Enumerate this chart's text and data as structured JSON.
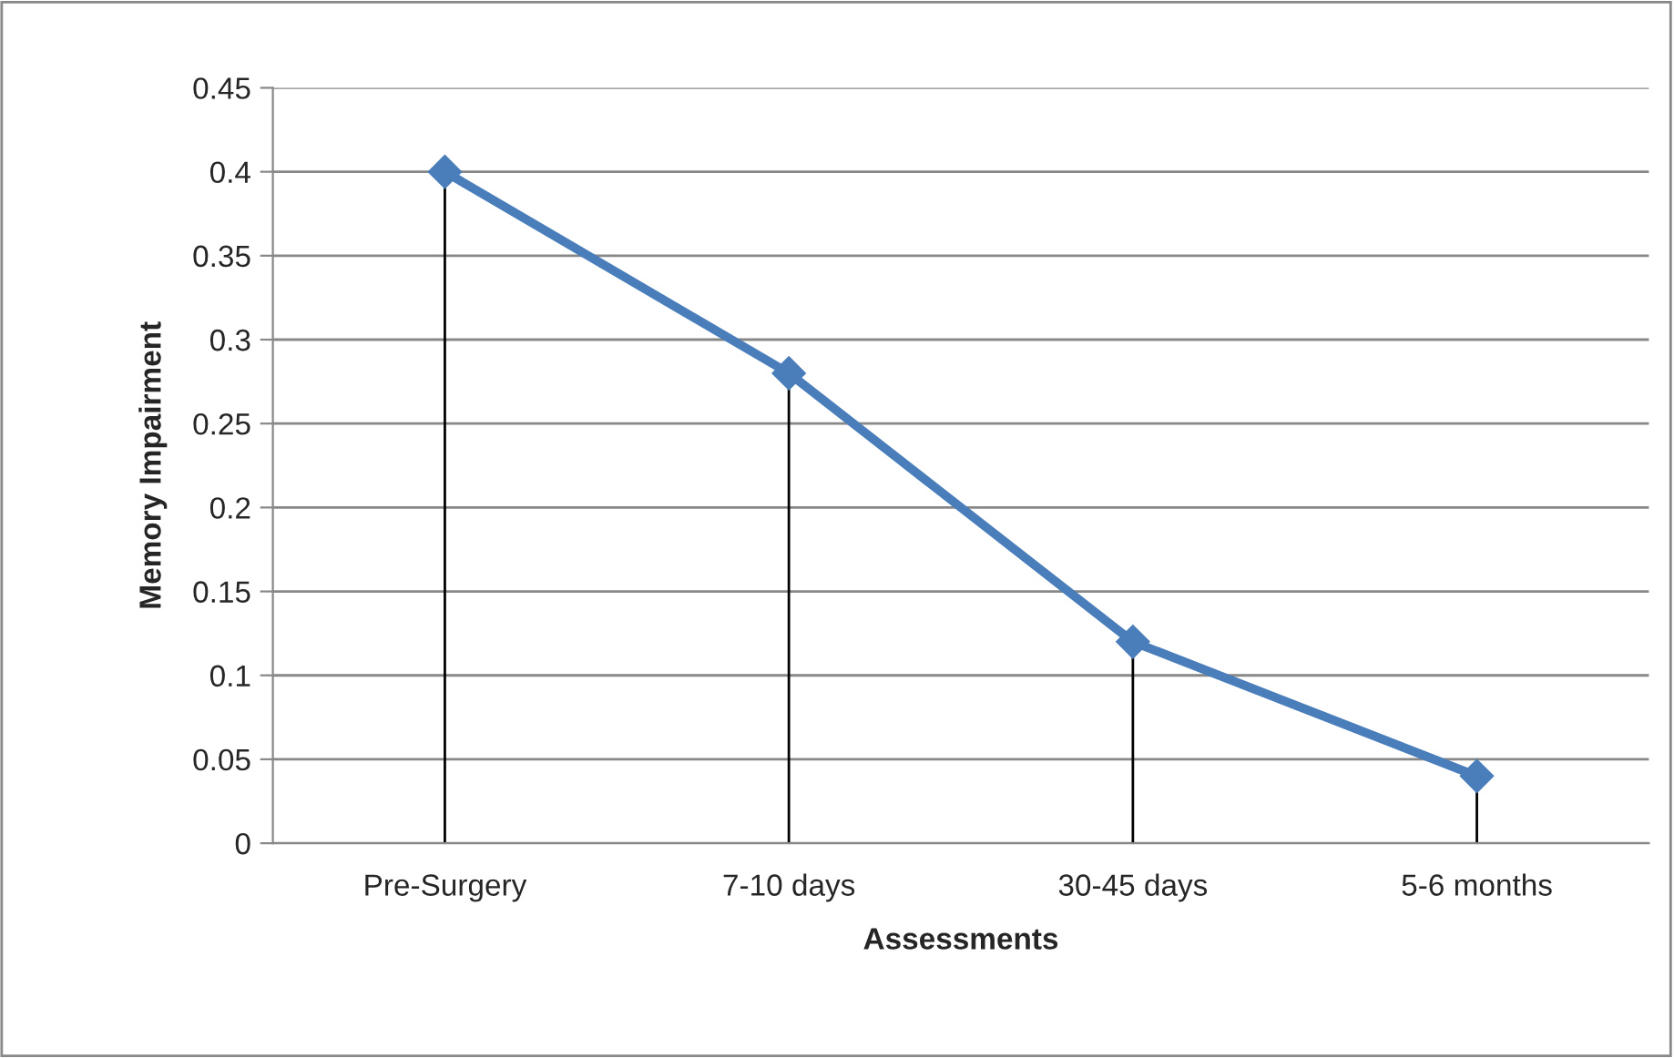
{
  "chart_data": {
    "type": "line",
    "xlabel": "Assessments",
    "ylabel": "Memory Impairment",
    "categories": [
      "Pre-Surgery",
      "7-10 days",
      "30-45 days",
      "5-6 months"
    ],
    "series": [
      {
        "color": "#4a7ebb",
        "values": [
          0.4,
          0.28,
          0.12,
          0.04
        ],
        "errors": [
          [
            0,
            0.4
          ],
          [
            0,
            0.28
          ],
          [
            0,
            0.12
          ],
          [
            0,
            0.04
          ]
        ]
      }
    ],
    "ylim": [
      0,
      0.45
    ],
    "yticks": [
      0,
      0.05,
      0.1,
      0.15,
      0.2,
      0.25,
      0.3,
      0.35,
      0.4,
      0.45
    ],
    "grid": "y",
    "marker": "diamond",
    "line_style": "solid"
  }
}
